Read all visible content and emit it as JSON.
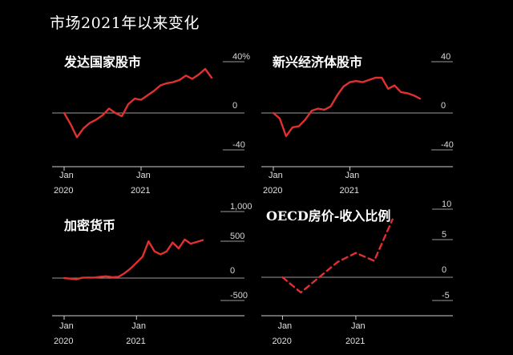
{
  "page_title": "市场2021年以来变化",
  "colors": {
    "background": "#000000",
    "series": "#e03030",
    "axis": "#cfcfcf",
    "grid": "#9a9a9a"
  },
  "chart_data": [
    {
      "type": "line",
      "title": "发达国家股市",
      "ylim": [
        -40,
        40
      ],
      "yticks": [
        {
          "v": 40,
          "label": "40%"
        },
        {
          "v": 0,
          "label": "0"
        },
        {
          "v": -40,
          "label": "-40"
        }
      ],
      "xticks": [
        {
          "x": 0,
          "l1": "Jan",
          "l2": "2020"
        },
        {
          "x": 12,
          "l1": "Jan",
          "l2": "2021"
        }
      ],
      "xlim": [
        0,
        23
      ],
      "dashed": false,
      "x": [
        0,
        1,
        2,
        3,
        4,
        5,
        6,
        7,
        8,
        9,
        10,
        11,
        12,
        13,
        14,
        15,
        16,
        17,
        18,
        19,
        20,
        21,
        22,
        23
      ],
      "values": [
        0,
        -10,
        -22,
        -14,
        -9,
        -6,
        -2,
        4,
        0,
        -3,
        8,
        13,
        12,
        16,
        20,
        25,
        27,
        28,
        30,
        34,
        31,
        35,
        40,
        32
      ]
    },
    {
      "type": "line",
      "title": "新兴经济体股市",
      "ylim": [
        -40,
        40
      ],
      "yticks": [
        {
          "v": 40,
          "label": "40"
        },
        {
          "v": 0,
          "label": "0"
        },
        {
          "v": -40,
          "label": "-40"
        }
      ],
      "xticks": [
        {
          "x": 0,
          "l1": "Jan",
          "l2": "2020"
        },
        {
          "x": 12,
          "l1": "Jan",
          "l2": "2021"
        }
      ],
      "xlim": [
        0,
        23
      ],
      "dashed": false,
      "x": [
        0,
        1,
        2,
        3,
        4,
        5,
        6,
        7,
        8,
        9,
        10,
        11,
        12,
        13,
        14,
        15,
        16,
        17,
        18,
        19,
        20,
        21,
        22,
        23
      ],
      "values": [
        0,
        -5,
        -21,
        -13,
        -12,
        -6,
        2,
        4,
        3,
        6,
        16,
        24,
        28,
        29,
        28,
        30,
        32,
        32,
        22,
        25,
        19,
        18,
        16,
        13
      ]
    },
    {
      "type": "line",
      "title": "加密货币",
      "ylim": [
        -500,
        1000
      ],
      "yticks": [
        {
          "v": 1000,
          "label": "1,000"
        },
        {
          "v": 500,
          "label": "500"
        },
        {
          "v": 0,
          "label": "0"
        },
        {
          "v": -500,
          "label": "-500"
        }
      ],
      "xticks": [
        {
          "x": 0,
          "l1": "Jan",
          "l2": "2020"
        },
        {
          "x": 12,
          "l1": "Jan",
          "l2": "2021"
        }
      ],
      "xlim": [
        0,
        23
      ],
      "dashed": false,
      "x": [
        0,
        1,
        2,
        3,
        4,
        5,
        6,
        7,
        8,
        9,
        10,
        11,
        12,
        13,
        14,
        15,
        16,
        17,
        18,
        19,
        20,
        21,
        22,
        23
      ],
      "values": [
        0,
        -10,
        -20,
        5,
        10,
        8,
        20,
        30,
        15,
        20,
        80,
        160,
        260,
        360,
        620,
        450,
        400,
        450,
        600,
        500,
        650,
        580,
        610,
        640
      ]
    },
    {
      "type": "line",
      "title": "OECD房价-收入比例",
      "ylim": [
        -5,
        10
      ],
      "yticks": [
        {
          "v": 10,
          "label": "10"
        },
        {
          "v": 5,
          "label": "5"
        },
        {
          "v": 0,
          "label": "0"
        },
        {
          "v": -5,
          "label": "-5"
        }
      ],
      "xticks": [
        {
          "x": 0,
          "l1": "Jan",
          "l2": "2020"
        },
        {
          "x": 4,
          "l1": "Jan",
          "l2": "2021"
        }
      ],
      "xlim": [
        -0.5,
        7.5
      ],
      "dashed": true,
      "x": [
        0,
        1,
        2,
        3,
        4,
        5,
        6
      ],
      "values": [
        0,
        -2.5,
        0,
        2.5,
        4,
        2.7,
        9.5
      ]
    }
  ]
}
